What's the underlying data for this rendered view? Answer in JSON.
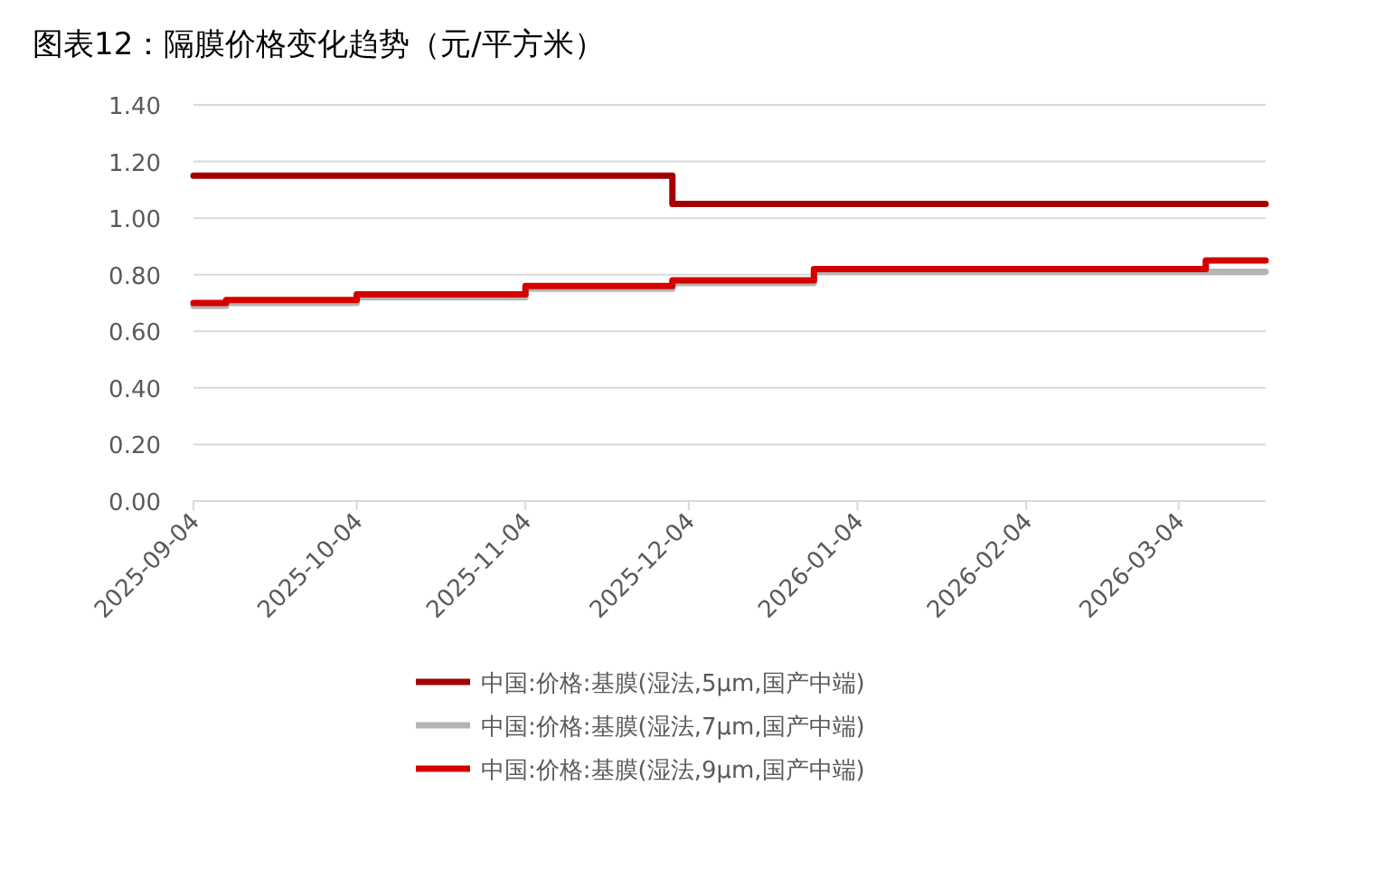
{
  "chart_data": {
    "type": "step",
    "title": "图表12：隔膜价格变化趋势（元/平方米）",
    "xlim": [
      "2025-09-04",
      "2026-03-20"
    ],
    "xticks": [
      "2025-09-04",
      "2025-10-04",
      "2025-11-04",
      "2025-12-04",
      "2026-01-04",
      "2026-02-04",
      "2026-03-04"
    ],
    "ylim": [
      0,
      1.4
    ],
    "yticks": [
      {
        "value": 0,
        "label": "0.00"
      },
      {
        "value": 0.2,
        "label": "0.20"
      },
      {
        "value": 0.4,
        "label": "0.40"
      },
      {
        "value": 0.6,
        "label": "0.60"
      },
      {
        "value": 0.8,
        "label": "0.80"
      },
      {
        "value": 1.0,
        "label": "1.00"
      },
      {
        "value": 1.2,
        "label": "1.20"
      },
      {
        "value": 1.4,
        "label": "1.40"
      }
    ],
    "grid": "y",
    "legend": "bottom",
    "line_style": "solid",
    "series": [
      {
        "name": "中国:价格:基膜(湿法,5μm,国产中端)",
        "color": "#a50000",
        "x": [
          "2025-09-04",
          "2025-12-01",
          "2026-03-20"
        ],
        "values": [
          1.15,
          1.05,
          1.05
        ]
      },
      {
        "name": "中国:价格:基膜(湿法,7μm,国产中端)",
        "color": "#b4b4b4",
        "x": [
          "2025-09-04",
          "2025-09-10",
          "2025-10-04",
          "2025-11-04",
          "2025-12-01",
          "2025-12-27",
          "2026-03-20"
        ],
        "values": [
          0.69,
          0.7,
          0.72,
          0.75,
          0.77,
          0.81,
          0.81
        ]
      },
      {
        "name": "中国:价格:基膜(湿法,9μm,国产中端)",
        "color": "#d40000",
        "x": [
          "2025-09-04",
          "2025-09-10",
          "2025-10-04",
          "2025-11-04",
          "2025-12-01",
          "2025-12-27",
          "2026-03-09",
          "2026-03-20"
        ],
        "values": [
          0.7,
          0.71,
          0.73,
          0.76,
          0.78,
          0.82,
          0.85,
          0.85
        ]
      }
    ]
  }
}
